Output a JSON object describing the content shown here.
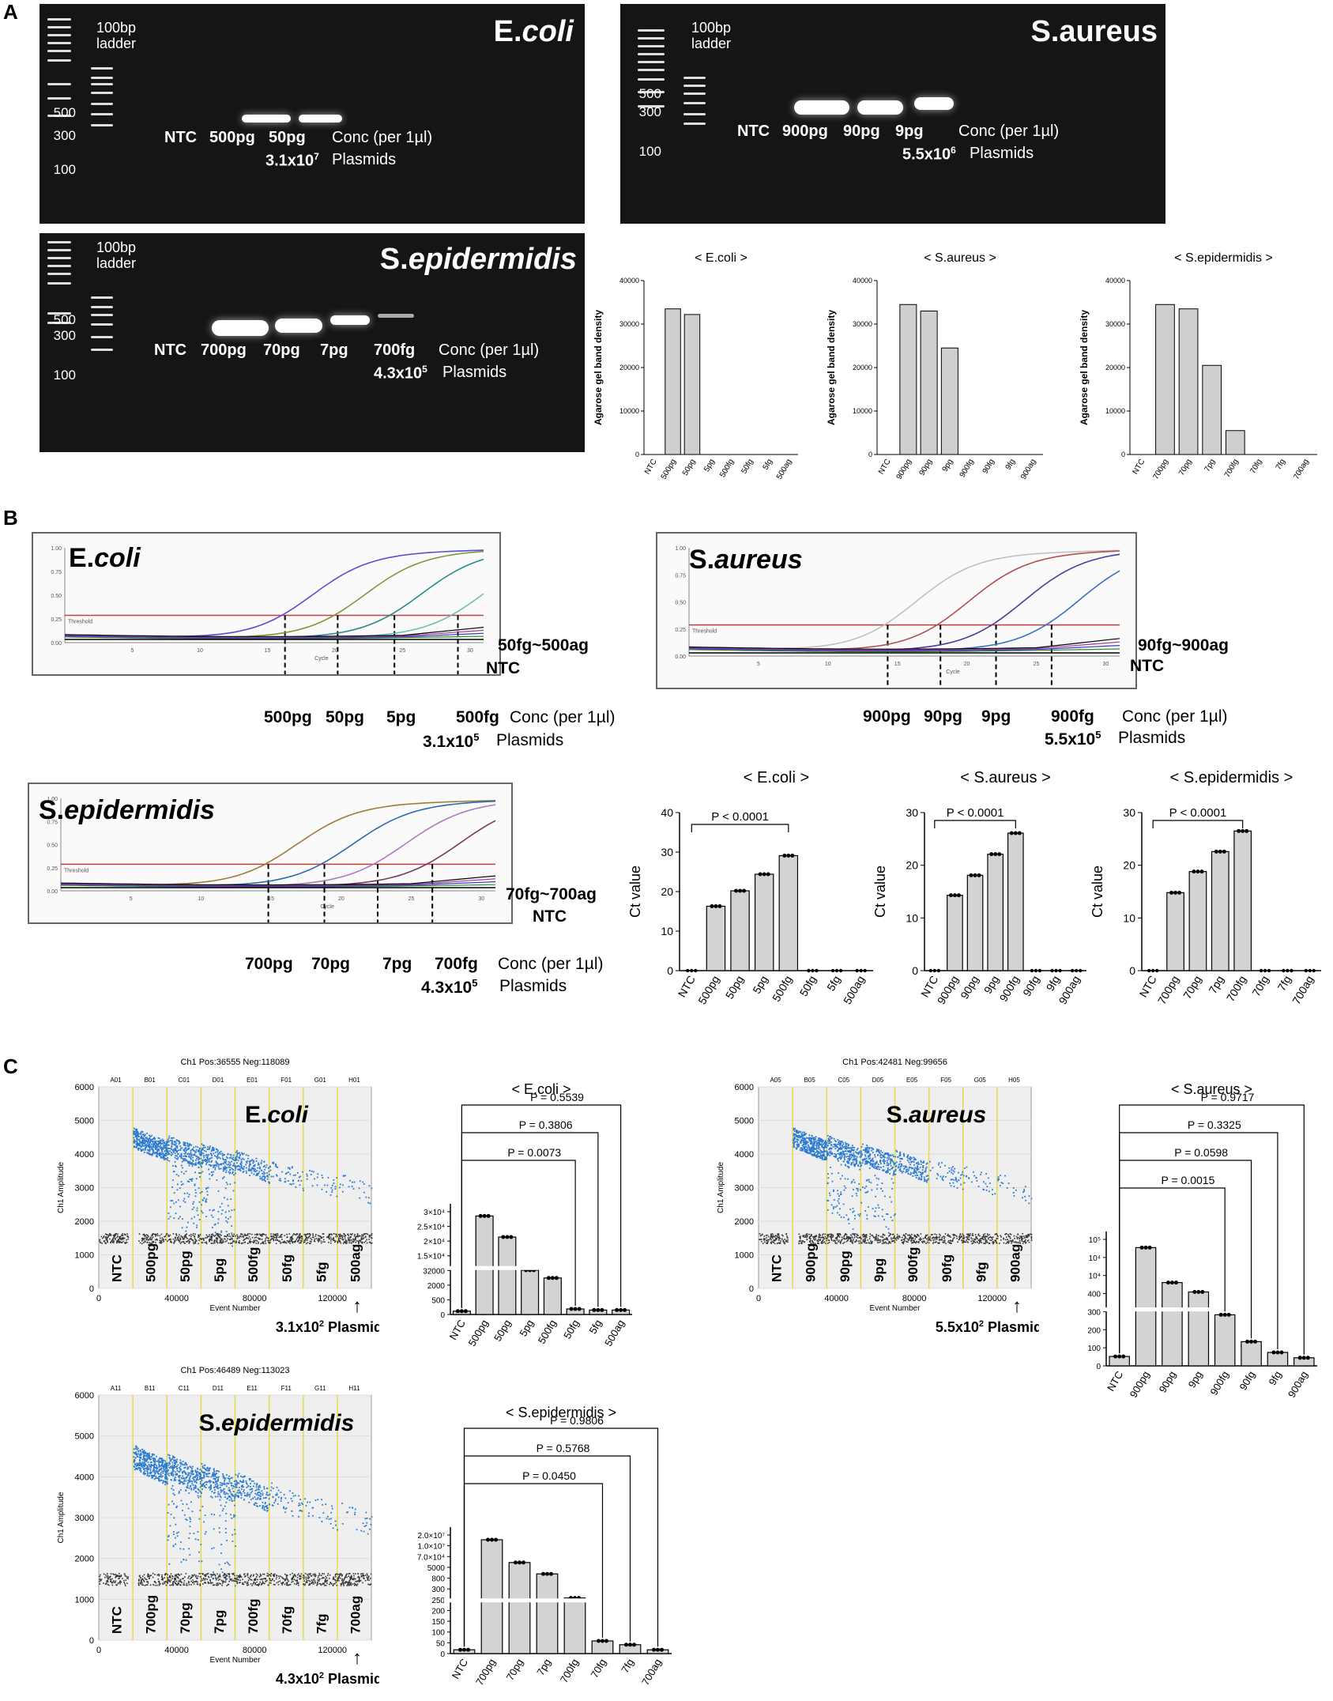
{
  "panels": {
    "a": "A",
    "b": "B",
    "c": "C"
  },
  "gels": [
    {
      "id": "gel-ecoli",
      "title_plain": "E.",
      "title_italic": "coli",
      "ladder": "100bp\nladder",
      "sizes": [
        "500",
        "300",
        "100"
      ],
      "lanes": [
        "NTC",
        "500pg",
        "50pg"
      ],
      "conc": "Conc (per 1µl)",
      "copies": "3.1x10",
      "copies_exp": "7",
      "plasmids": "Plasmids"
    },
    {
      "id": "gel-saureus",
      "title_plain": "S.aureus",
      "title_italic": "",
      "ladder": "100bp\nladder",
      "sizes": [
        "500",
        "300",
        "100"
      ],
      "lanes": [
        "NTC",
        "900pg",
        "90pg",
        "9pg"
      ],
      "conc": "Conc (per 1µl)",
      "copies": "5.5x10",
      "copies_exp": "6",
      "plasmids": "Plasmids"
    },
    {
      "id": "gel-sepi",
      "title_plain": "S.",
      "title_italic": "epidermidis",
      "ladder": "100bp\nladder",
      "sizes": [
        "500",
        "300",
        "100"
      ],
      "lanes": [
        "NTC",
        "700pg",
        "70pg",
        "7pg",
        "700fg"
      ],
      "conc": "Conc (per 1µl)",
      "copies": "4.3x10",
      "copies_exp": "5",
      "plasmids": "Plasmids"
    }
  ],
  "qpcr": [
    {
      "id": "qpcr-ecoli",
      "title_plain": "E.",
      "title_italic": "coli",
      "range": "50fg~500ag",
      "ntc": "NTC",
      "concs": [
        "500pg",
        "50pg",
        "5pg",
        "500fg"
      ],
      "conc": "Conc (per 1µl)",
      "copies": "3.1x10",
      "copies_exp": "5",
      "plasmids": "Plasmids",
      "yticks": [
        "1.00",
        "0.75",
        "0.50",
        "0.25",
        "0.00"
      ],
      "xticks": [
        "5",
        "10",
        "15",
        "20",
        "25",
        "30"
      ],
      "xlabel": "Cycle",
      "threshold": "Threshold"
    },
    {
      "id": "qpcr-saureus",
      "title_plain": "S.",
      "title_italic": "aureus",
      "range": "90fg~900ag",
      "ntc": "NTC",
      "concs": [
        "900pg",
        "90pg",
        "9pg",
        "900fg"
      ],
      "conc": "Conc (per 1µl)",
      "copies": "5.5x10",
      "copies_exp": "5",
      "plasmids": "Plasmids",
      "yticks": [
        "1.00",
        "0.75",
        "0.50",
        "0.25",
        "0.00"
      ],
      "xticks": [
        "5",
        "10",
        "15",
        "20",
        "25",
        "30"
      ],
      "xlabel": "Cycle",
      "threshold": "Threshold"
    },
    {
      "id": "qpcr-sepi",
      "title_plain": "S.",
      "title_italic": "epidermidis",
      "range": "70fg~700ag",
      "ntc": "NTC",
      "concs": [
        "700pg",
        "70pg",
        "7pg",
        "700fg"
      ],
      "conc": "Conc (per 1µl)",
      "copies": "4.3x10",
      "copies_exp": "5",
      "plasmids": "Plasmids",
      "yticks": [
        "1.00",
        "0.75",
        "0.50",
        "0.25",
        "0.00"
      ],
      "xticks": [
        "5",
        "10",
        "15",
        "20",
        "25",
        "30"
      ],
      "xlabel": "Cycle",
      "threshold": "Threshold"
    }
  ],
  "ddpcr": [
    {
      "id": "dd-ecoli",
      "header": "Ch1 Pos:36555 Neg:118089",
      "wells": [
        "A01",
        "B01",
        "C01",
        "D01",
        "E01",
        "F01",
        "G01",
        "H01"
      ],
      "title_plain": "E.",
      "title_italic": "coli",
      "lanes": [
        "NTC",
        "500pg",
        "50pg",
        "5pg",
        "500fg",
        "50fg",
        "5fg",
        "500ag"
      ],
      "yticks": [
        "6000",
        "5000",
        "4000",
        "3000",
        "2000",
        "1000",
        "0"
      ],
      "xticks": [
        "0",
        "40000",
        "80000",
        "120000"
      ],
      "xlabel": "Event Number",
      "ylabel": "Ch1 Amplitude",
      "copies": "3.1x10",
      "copies_exp": "2",
      "plasmids": "Plasmids",
      "arrow": "↑"
    },
    {
      "id": "dd-saureus",
      "header": "Ch1 Pos:42481 Neg:99656",
      "wells": [
        "A05",
        "B05",
        "C05",
        "D05",
        "E05",
        "F05",
        "G05",
        "H05"
      ],
      "title_plain": "S.",
      "title_italic": "aureus",
      "lanes": [
        "NTC",
        "900pg",
        "90pg",
        "9pg",
        "900fg",
        "90fg",
        "9fg",
        "900ag"
      ],
      "yticks": [
        "6000",
        "5000",
        "4000",
        "3000",
        "2000",
        "1000",
        "0"
      ],
      "xticks": [
        "0",
        "40000",
        "80000",
        "120000"
      ],
      "xlabel": "Event Number",
      "ylabel": "Ch1 Amplitude",
      "copies": "5.5x10",
      "copies_exp": "2",
      "plasmids": "Plasmids",
      "arrow": "↑"
    },
    {
      "id": "dd-sepi",
      "header": "Ch1 Pos:46489 Neg:113023",
      "wells": [
        "A11",
        "B11",
        "C11",
        "D11",
        "E11",
        "F11",
        "G11",
        "H11"
      ],
      "title_plain": "S.",
      "title_italic": "epidermidis",
      "lanes": [
        "NTC",
        "700pg",
        "70pg",
        "7pg",
        "700fg",
        "70fg",
        "7fg",
        "700ag"
      ],
      "yticks": [
        "6000",
        "5000",
        "4000",
        "3000",
        "2000",
        "1000",
        "0"
      ],
      "xticks": [
        "0",
        "40000",
        "80000",
        "120000"
      ],
      "xlabel": "Event Number",
      "ylabel": "Ch1 Amplitude",
      "copies": "4.3x10",
      "copies_exp": "2",
      "plasmids": "Plasmids",
      "arrow": "↑"
    }
  ],
  "chart_data": [
    {
      "id": "gel-density-ecoli",
      "type": "bar",
      "title": "< E.coli >",
      "ylabel": "Agarose gel band density",
      "categories": [
        "NTC",
        "500pg",
        "50pg",
        "5pg",
        "500fg",
        "50fg",
        "5fg",
        "500ag"
      ],
      "values": [
        0,
        33500,
        32200,
        0,
        0,
        0,
        0,
        0
      ],
      "ylim": [
        0,
        40000
      ],
      "yticks": [
        0,
        10000,
        20000,
        30000,
        40000
      ]
    },
    {
      "id": "gel-density-saureus",
      "type": "bar",
      "title": "< S.aureus >",
      "ylabel": "Agarose gel band density",
      "categories": [
        "NTC",
        "900pg",
        "90pg",
        "9pg",
        "900fg",
        "90fg",
        "9fg",
        "900ag"
      ],
      "values": [
        0,
        34500,
        33000,
        24500,
        0,
        0,
        0,
        0
      ],
      "ylim": [
        0,
        40000
      ],
      "yticks": [
        0,
        10000,
        20000,
        30000,
        40000
      ]
    },
    {
      "id": "gel-density-sepi",
      "type": "bar",
      "title": "< S.epidermidis >",
      "ylabel": "Agarose gel band density",
      "categories": [
        "NTC",
        "700pg",
        "70pg",
        "7pg",
        "700fg",
        "70fg",
        "7fg",
        "700ag"
      ],
      "values": [
        0,
        34500,
        33500,
        20500,
        5500,
        0,
        0,
        0
      ],
      "ylim": [
        0,
        40000
      ],
      "yticks": [
        0,
        10000,
        20000,
        30000,
        40000
      ]
    },
    {
      "id": "ct-ecoli",
      "type": "bar",
      "title": "< E.coli >",
      "ylabel": "Ct value",
      "pvalue": "P < 0.0001",
      "categories": [
        "NTC",
        "500pg",
        "50pg",
        "5pg",
        "500fg",
        "50fg",
        "5fg",
        "500ag"
      ],
      "values": [
        0,
        16.3,
        20.2,
        24.4,
        29.1,
        0,
        0,
        0
      ],
      "ylim": [
        0,
        40
      ],
      "yticks": [
        0,
        10,
        20,
        30,
        40
      ]
    },
    {
      "id": "ct-saureus",
      "type": "bar",
      "title": "< S.aureus >",
      "ylabel": "Ct value",
      "pvalue": "P < 0.0001",
      "categories": [
        "NTC",
        "900pg",
        "90pg",
        "9pg",
        "900fg",
        "90fg",
        "9fg",
        "900ag"
      ],
      "values": [
        0,
        14.3,
        18.1,
        22.1,
        26.1,
        0,
        0,
        0
      ],
      "ylim": [
        0,
        30
      ],
      "yticks": [
        0,
        10,
        20,
        30
      ]
    },
    {
      "id": "ct-sepi",
      "type": "bar",
      "title": "< S.epidermidis >",
      "ylabel": "Ct value",
      "pvalue": "P < 0.0001",
      "categories": [
        "NTC",
        "700pg",
        "70pg",
        "7pg",
        "700fg",
        "70fg",
        "7fg",
        "700ag"
      ],
      "values": [
        0,
        14.8,
        18.8,
        22.6,
        26.5,
        0,
        0,
        0
      ],
      "ylim": [
        0,
        30
      ],
      "yticks": [
        0,
        10,
        20,
        30
      ]
    },
    {
      "id": "ddpcr-ecoli",
      "type": "bar",
      "title": "< E.coli >",
      "categories": [
        "NTC",
        "500pg",
        "50pg",
        "5pg",
        "500fg",
        "50fg",
        "5fg",
        "500ag"
      ],
      "yticks": [
        "3×10⁴",
        "2.5×10⁴",
        "2×10⁴",
        "1.5×10⁴",
        "32000",
        "2000",
        "500",
        "0"
      ],
      "pvalues": [
        "P = 0.5539",
        "P = 0.3806",
        "P = 0.0073"
      ]
    },
    {
      "id": "ddpcr-saureus",
      "type": "bar",
      "title": "< S.aureus >",
      "categories": [
        "NTC",
        "900pg",
        "90pg",
        "9pg",
        "900fg",
        "90fg",
        "9fg",
        "900ag"
      ],
      "yticks": [
        "10⁵",
        "10⁴",
        "10⁴",
        "400",
        "300",
        "200",
        "100",
        "0"
      ],
      "pvalues": [
        "P = 0.9717",
        "P = 0.3325",
        "P = 0.0598",
        "P = 0.0015"
      ]
    },
    {
      "id": "ddpcr-sepi",
      "type": "bar",
      "title": "< S.epidermidis >",
      "categories": [
        "NTC",
        "700pg",
        "70pg",
        "7pg",
        "700fg",
        "70fg",
        "7fg",
        "700ag"
      ],
      "yticks": [
        "2.0×10⁷",
        "1.0×10⁷",
        "7.0×10⁴",
        "5000",
        "800",
        "300",
        "250",
        "200",
        "150",
        "100",
        "50",
        "0"
      ],
      "pvalues": [
        "P = 0.9806",
        "P = 0.5768",
        "P = 0.0450"
      ]
    }
  ]
}
